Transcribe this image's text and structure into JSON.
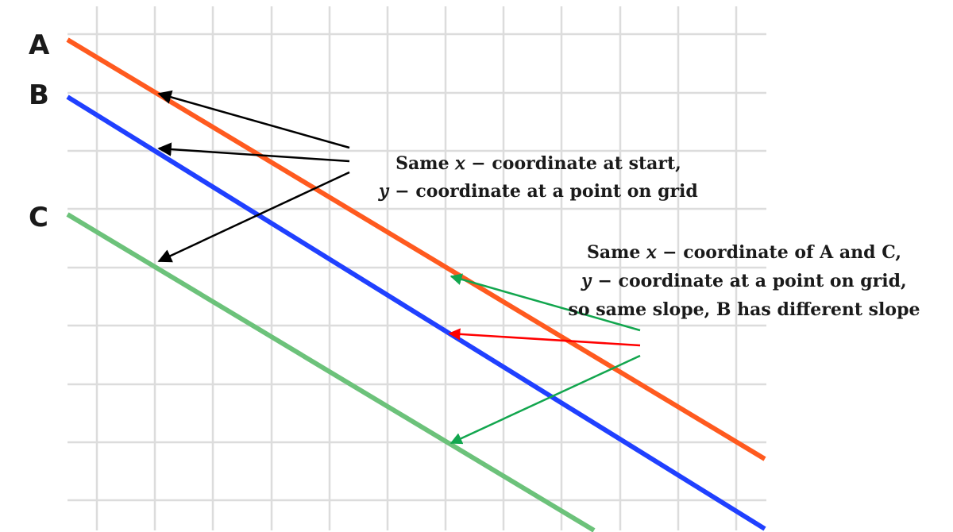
{
  "diagram": {
    "lines": [
      {
        "label": "A",
        "color": "#ff5a1f"
      },
      {
        "label": "B",
        "color": "#2040ff"
      },
      {
        "label": "C",
        "color": "#6cc27a"
      }
    ],
    "note_start": {
      "line1": "Same 𝑥 − coordinate at start,",
      "line2": "𝑦 − coordinate at a point on grid"
    },
    "note_slope": {
      "line1": "Same 𝑥 − coordinate of A and C,",
      "line2": "𝑦  − coordinate at a point on grid,",
      "line3": "so same slope, B has different slope"
    },
    "arrow_colors": {
      "black": "#000000",
      "green": "#12a64e",
      "red": "#ff0000"
    }
  }
}
